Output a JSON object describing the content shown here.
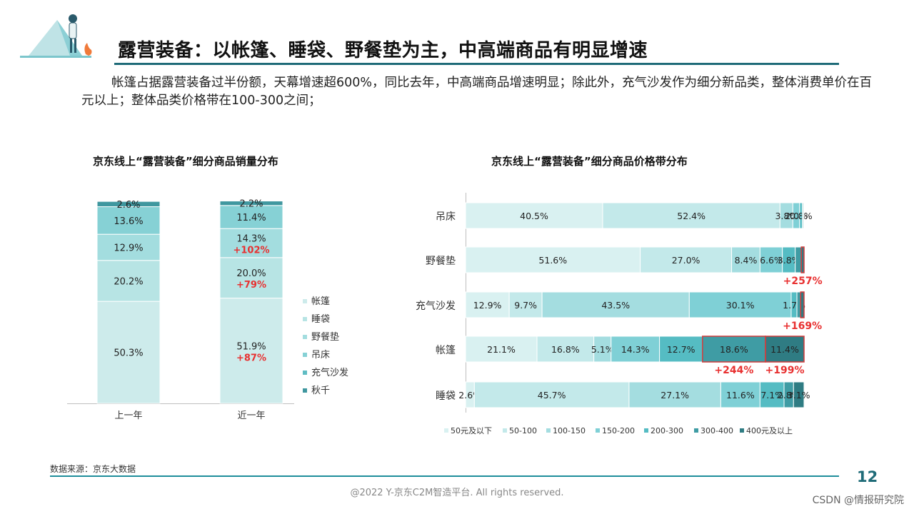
{
  "title": "露营装备：以帐篷、睡袋、野餐垫为主，中高端商品有明显增速",
  "description": "帐篷占据露营装备过半份额，天幕增速超600%，同比去年，中高端商品增速明显；除此外，充气沙发作为细分新品类，整体消费单价在百元以上；整体品类价格带在100-300之间；",
  "source": "数据来源：京东大数据",
  "page_number": "12",
  "copyright": "@2022 Y-京东C2M智造平台. All rights reserved.",
  "corner_text": "CSDN @情报研究院",
  "colors": {
    "accent": "#1f6b78",
    "growth_red": "#e83030",
    "highlight_box": "#d23b3b"
  },
  "chart_data": [
    {
      "type": "bar",
      "stacked": true,
      "title": "京东线上“露营装备”细分商品销量分布",
      "categories": [
        "上一年",
        "近一年"
      ],
      "series": [
        {
          "name": "帐篷",
          "values": [
            50.3,
            51.9
          ],
          "color": "#cdebeb",
          "growth": [
            null,
            "+87%"
          ]
        },
        {
          "name": "睡袋",
          "values": [
            20.2,
            20.0
          ],
          "color": "#b7e4e4",
          "growth": [
            null,
            "+79%"
          ]
        },
        {
          "name": "野餐垫",
          "values": [
            12.9,
            14.3
          ],
          "color": "#a3dddf",
          "growth": [
            null,
            "+102%"
          ]
        },
        {
          "name": "吊床",
          "values": [
            13.6,
            11.4
          ],
          "color": "#86d1d5",
          "growth": [
            null,
            null
          ]
        },
        {
          "name": "充气沙发",
          "values": [
            null,
            null
          ],
          "color": "#5fbcc3",
          "growth": [
            null,
            null
          ]
        },
        {
          "name": "秋千",
          "values": [
            2.6,
            2.2
          ],
          "color": "#3f979f",
          "growth": [
            null,
            null
          ]
        }
      ],
      "labels": [
        [
          "50.3%",
          "51.9%"
        ],
        [
          "20.2%",
          "20.0%"
        ],
        [
          "12.9%",
          "14.3%"
        ],
        [
          "13.6%",
          "11.4%"
        ],
        [
          "",
          ""
        ],
        [
          "2.6%",
          "2.2%"
        ]
      ],
      "legend": "right",
      "ylim": [
        0,
        100
      ]
    },
    {
      "type": "bar",
      "orientation": "horizontal",
      "stacked": true,
      "title": "京东线上“露营装备”细分商品价格带分布",
      "categories": [
        "吊床",
        "野餐垫",
        "充气沙发",
        "帐篷",
        "睡袋"
      ],
      "series": [
        {
          "name": "50元及以下",
          "values": [
            40.5,
            51.6,
            12.9,
            21.1,
            2.6
          ],
          "color": "#d9f1f1"
        },
        {
          "name": "50-100",
          "values": [
            52.4,
            27.0,
            9.7,
            16.8,
            45.7
          ],
          "color": "#c3e9ea"
        },
        {
          "name": "100-150",
          "values": [
            3.8,
            8.4,
            43.5,
            5.1,
            27.1
          ],
          "color": "#a4dde0"
        },
        {
          "name": "150-200",
          "values": [
            2.0,
            6.6,
            30.1,
            14.3,
            11.6
          ],
          "color": "#7fd0d6"
        },
        {
          "name": "200-300",
          "values": [
            0.8,
            3.8,
            1.7,
            12.7,
            7.1
          ],
          "color": "#55bcc3"
        },
        {
          "name": "300-400",
          "values": [
            0.3,
            1.8,
            1.1,
            18.6,
            2.8
          ],
          "color": "#3f9ca4"
        },
        {
          "name": "400元及以上",
          "values": [
            0.2,
            0.8,
            1.0,
            11.4,
            3.1
          ],
          "color": "#2f7c83"
        }
      ],
      "labels": [
        [
          "40.5%",
          "52.4%",
          "3.8%",
          "2.0%",
          "0.8%",
          "",
          ""
        ],
        [
          "51.6%",
          "27.0%",
          "8.4%",
          "6.6%",
          "3.8%",
          "",
          ""
        ],
        [
          "12.9%",
          "9.7%",
          "43.5%",
          "30.1%",
          "1.7%",
          "",
          ""
        ],
        [
          "21.1%",
          "16.8%",
          "5.1%",
          "14.3%",
          "12.7%",
          "18.6%",
          "11.4%"
        ],
        [
          "2.6%",
          "45.7%",
          "27.1%",
          "11.6%",
          "7.1%",
          "2.8%",
          "3.1%"
        ]
      ],
      "annotations": [
        {
          "category": "野餐垫",
          "segments": "400元及以上",
          "text": "+257%"
        },
        {
          "category": "充气沙发",
          "segments": "400元及以上",
          "text": "+169%"
        },
        {
          "category": "帐篷",
          "segments": "300-400",
          "text": "+244%"
        },
        {
          "category": "帐篷",
          "segments": "400元及以上",
          "text": "+199%"
        }
      ],
      "legend": "bottom",
      "xlim": [
        0,
        100
      ]
    }
  ]
}
